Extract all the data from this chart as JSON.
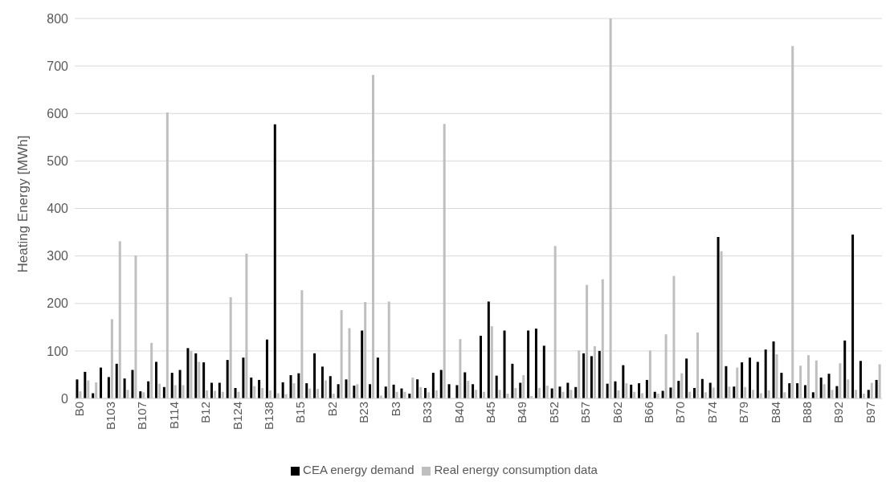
{
  "chart_data": {
    "type": "bar",
    "ylabel": "Heating Energy [MWh]",
    "categories": [
      "B0",
      null,
      null,
      null,
      "B103",
      null,
      null,
      null,
      "B107",
      null,
      null,
      null,
      "B114",
      null,
      null,
      null,
      "B12",
      null,
      null,
      null,
      "B124",
      null,
      null,
      null,
      "B138",
      null,
      null,
      null,
      "B15",
      null,
      null,
      null,
      "B2",
      null,
      null,
      null,
      "B23",
      null,
      null,
      null,
      "B3",
      null,
      null,
      null,
      "B33",
      null,
      null,
      null,
      "B40",
      null,
      null,
      null,
      "B45",
      null,
      null,
      null,
      "B49",
      null,
      null,
      null,
      "B52",
      null,
      null,
      null,
      "B57",
      null,
      null,
      null,
      "B62",
      null,
      null,
      null,
      "B66",
      null,
      null,
      null,
      "B70",
      null,
      null,
      null,
      "B74",
      null,
      null,
      null,
      "B79",
      null,
      null,
      null,
      "B84",
      null,
      null,
      null,
      "B88",
      null,
      null,
      null,
      "B92",
      null,
      null,
      null,
      "B97",
      null
    ],
    "series": [
      {
        "name": "CEA energy demand",
        "color": "#000000",
        "values": [
          40,
          56,
          11,
          65,
          45,
          73,
          42,
          60,
          15,
          36,
          77,
          24,
          54,
          60,
          106,
          95,
          76,
          33,
          33,
          81,
          22,
          86,
          44,
          39,
          124,
          577,
          34,
          49,
          53,
          32,
          95,
          67,
          47,
          30,
          40,
          27,
          143,
          30,
          86,
          25,
          29,
          21,
          10,
          40,
          22,
          54,
          60,
          30,
          28,
          55,
          30,
          132,
          204,
          48,
          143,
          73,
          33,
          143,
          147,
          111,
          21,
          25,
          33,
          24,
          95,
          89,
          100,
          31,
          36,
          70,
          29,
          32,
          39,
          14,
          16,
          23,
          37,
          84,
          22,
          41,
          33,
          340,
          68,
          25,
          76,
          86,
          77,
          103,
          120,
          54,
          32,
          32,
          28,
          13,
          44,
          52,
          26,
          122,
          345,
          79,
          18,
          39
        ]
      },
      {
        "name": "Real energy consumption data",
        "color": "#bfbfbf",
        "values": [
          15,
          38,
          34,
          null,
          167,
          331,
          18,
          301,
          13,
          117,
          31,
          602,
          28,
          28,
          100,
          77,
          17,
          16,
          14,
          213,
          14,
          305,
          26,
          22,
          17,
          11,
          9,
          32,
          228,
          21,
          20,
          38,
          10,
          186,
          148,
          30,
          203,
          681,
          6,
          204,
          14,
          14,
          44,
          24,
          13,
          17,
          578,
          null,
          125,
          37,
          18,
          14,
          152,
          18,
          10,
          22,
          49,
          5,
          22,
          27,
          321,
          14,
          18,
          101,
          239,
          110,
          251,
          800,
          17,
          32,
          14,
          11,
          101,
          10,
          135,
          258,
          53,
          14,
          139,
          13,
          23,
          310,
          25,
          65,
          24,
          18,
          11,
          17,
          93,
          13,
          742,
          69,
          91,
          80,
          30,
          18,
          74,
          40,
          18,
          10,
          33,
          72
        ]
      }
    ],
    "ylim": [
      0,
      800
    ],
    "yticks": [
      0,
      100,
      200,
      300,
      400,
      500,
      600,
      700,
      800
    ],
    "grid": "y",
    "legend": "bottom"
  }
}
